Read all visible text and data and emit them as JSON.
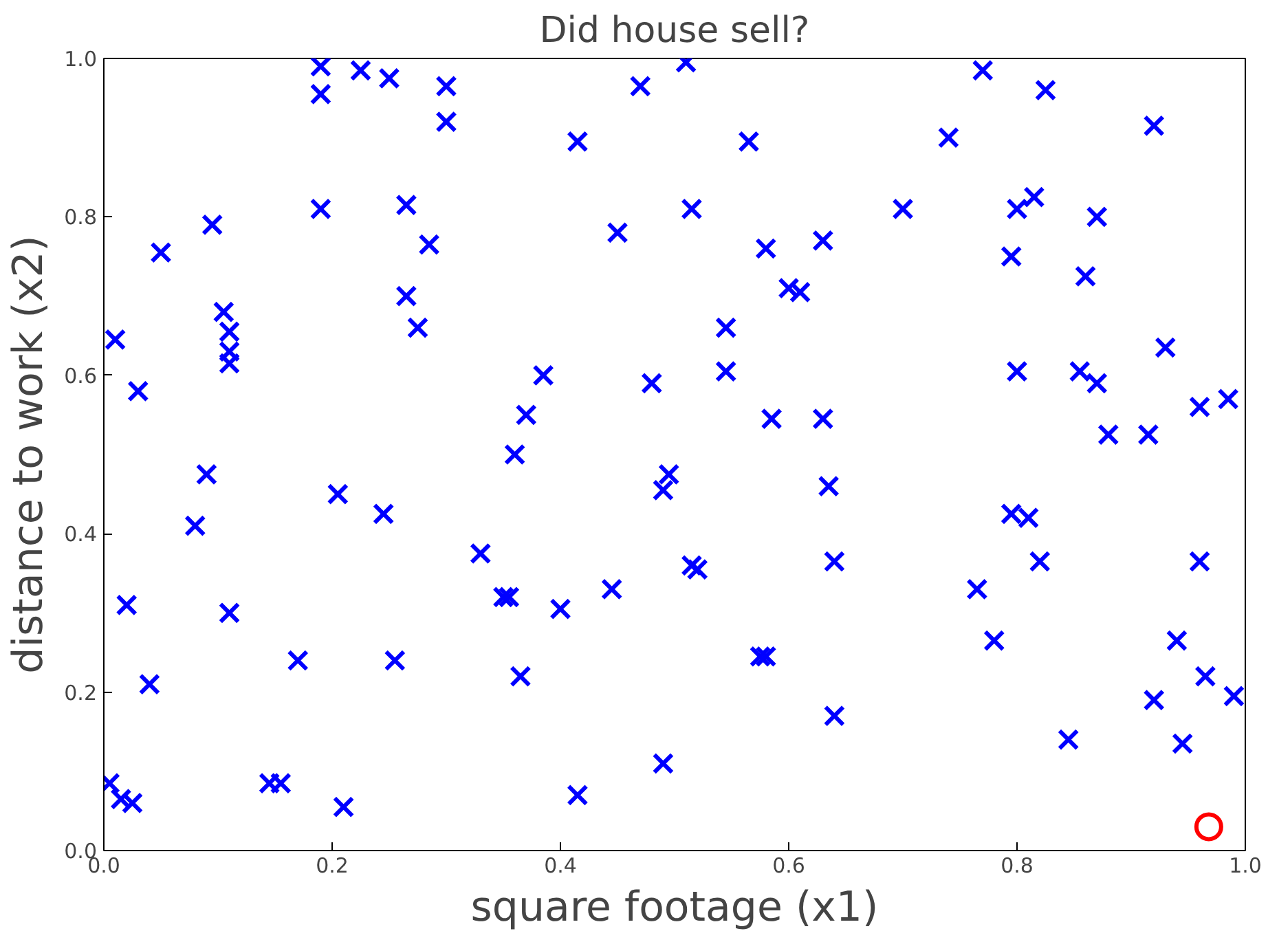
{
  "chart_data": {
    "type": "scatter",
    "title": "Did house sell?",
    "xlabel": "square footage (x1)",
    "ylabel": "distance to work (x2)",
    "xlim": [
      0,
      1
    ],
    "ylim": [
      0,
      1
    ],
    "xticks": [
      {
        "value": 0,
        "label": "0.0"
      },
      0.2,
      0.4,
      0.6,
      0.8,
      {
        "value": 1,
        "label": "1.0"
      }
    ],
    "yticks": [
      {
        "value": 0,
        "label": "0.0"
      },
      0.2,
      0.4,
      0.6,
      0.8,
      {
        "value": 1,
        "label": "1.0"
      }
    ],
    "grid": false,
    "series": [
      {
        "color": "#0000ff",
        "marker": "cross",
        "x": [
          0.01,
          0.03,
          0.02,
          0.04,
          0.005,
          0.015,
          0.025,
          0.05,
          0.095,
          0.08,
          0.09,
          0.105,
          0.11,
          0.11,
          0.11,
          0.11,
          0.145,
          0.155,
          0.17,
          0.19,
          0.19,
          0.19,
          0.205,
          0.21,
          0.225,
          0.25,
          0.265,
          0.265,
          0.275,
          0.285,
          0.3,
          0.3,
          0.245,
          0.255,
          0.33,
          0.35,
          0.355,
          0.36,
          0.37,
          0.365,
          0.385,
          0.4,
          0.415,
          0.415,
          0.445,
          0.45,
          0.47,
          0.48,
          0.49,
          0.495,
          0.49,
          0.51,
          0.515,
          0.515,
          0.52,
          0.545,
          0.545,
          0.565,
          0.575,
          0.58,
          0.58,
          0.585,
          0.6,
          0.61,
          0.63,
          0.63,
          0.635,
          0.64,
          0.64,
          0.7,
          0.74,
          0.765,
          0.77,
          0.78,
          0.795,
          0.795,
          0.8,
          0.8,
          0.81,
          0.815,
          0.82,
          0.825,
          0.845,
          0.855,
          0.86,
          0.87,
          0.87,
          0.88,
          0.915,
          0.92,
          0.92,
          0.93,
          0.94,
          0.945,
          0.96,
          0.96,
          0.965,
          0.985,
          0.99
        ],
        "values": [
          0.645,
          0.58,
          0.31,
          0.21,
          0.085,
          0.065,
          0.06,
          0.755,
          0.79,
          0.41,
          0.475,
          0.68,
          0.655,
          0.63,
          0.615,
          0.3,
          0.085,
          0.085,
          0.24,
          0.99,
          0.955,
          0.81,
          0.45,
          0.055,
          0.985,
          0.975,
          0.815,
          0.7,
          0.66,
          0.765,
          0.965,
          0.92,
          0.425,
          0.24,
          0.375,
          0.32,
          0.32,
          0.5,
          0.55,
          0.22,
          0.6,
          0.305,
          0.895,
          0.07,
          0.33,
          0.78,
          0.965,
          0.59,
          0.455,
          0.475,
          0.11,
          0.995,
          0.81,
          0.36,
          0.355,
          0.66,
          0.605,
          0.895,
          0.245,
          0.245,
          0.76,
          0.545,
          0.71,
          0.705,
          0.77,
          0.545,
          0.46,
          0.365,
          0.17,
          0.81,
          0.9,
          0.33,
          0.985,
          0.265,
          0.75,
          0.425,
          0.81,
          0.605,
          0.42,
          0.825,
          0.365,
          0.96,
          0.14,
          0.605,
          0.725,
          0.8,
          0.59,
          0.525,
          0.525,
          0.915,
          0.19,
          0.635,
          0.265,
          0.135,
          0.56,
          0.365,
          0.22,
          0.57,
          0.195
        ]
      },
      {
        "color": "#ff0000",
        "marker": "circle",
        "x": [
          0.968
        ],
        "values": [
          0.03
        ]
      }
    ]
  }
}
